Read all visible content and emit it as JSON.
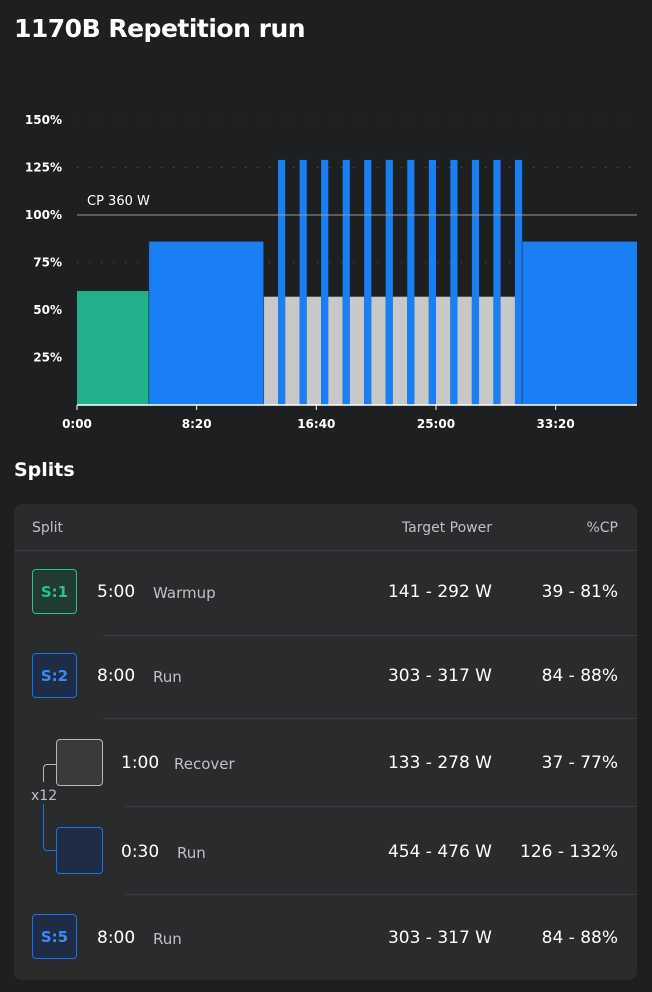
{
  "workout": {
    "title": "1170B Repetition run"
  },
  "chart_data": {
    "type": "bar",
    "x_ticks": [
      "0:00",
      "8:20",
      "16:40",
      "25:00",
      "33:20"
    ],
    "y_ticks": [
      "150%",
      "125%",
      "100%",
      "75%",
      "50%",
      "25%"
    ],
    "ylim_percent": [
      0,
      150
    ],
    "xlim_minutes": [
      0,
      39
    ],
    "cp_label": "CP 360 W",
    "cp_percent": 100,
    "colors": {
      "warmup": "#20b18c",
      "run": "#1a7ef5",
      "recover": "#c8c8c8"
    },
    "segments": [
      {
        "kind": "warmup",
        "start_min": 0,
        "duration_min": 5,
        "percent": 60
      },
      {
        "kind": "run",
        "start_min": 5,
        "duration_min": 8,
        "percent": 86
      },
      {
        "kind": "interval",
        "start_min": 13,
        "repeats": 12,
        "recover_min": 1,
        "recover_percent": 57,
        "run_min": 0.5,
        "run_percent": 129
      },
      {
        "kind": "run",
        "start_min": 31,
        "duration_min": 8,
        "percent": 86
      }
    ]
  },
  "splits": {
    "heading": "Splits",
    "columns": {
      "split": "Split",
      "target_power": "Target Power",
      "cp": "%CP"
    },
    "rows": [
      {
        "badge": "S:1",
        "duration": "5:00",
        "name": "Warmup",
        "power": "141 - 292 W",
        "cp": "39 - 81%"
      },
      {
        "badge": "S:2",
        "duration": "8:00",
        "name": "Run",
        "power": "303 - 317 W",
        "cp": "84 - 88%"
      },
      {
        "badge": "",
        "duration": "1:00",
        "name": "Recover",
        "power": "133 - 278 W",
        "cp": "37 - 77%"
      },
      {
        "badge": "",
        "duration": "0:30",
        "name": "Run",
        "power": "454 - 476 W",
        "cp": "126 - 132%"
      },
      {
        "badge": "S:5",
        "duration": "8:00",
        "name": "Run",
        "power": "303 - 317 W",
        "cp": "84 - 88%"
      }
    ],
    "repeat_label": "x12"
  }
}
